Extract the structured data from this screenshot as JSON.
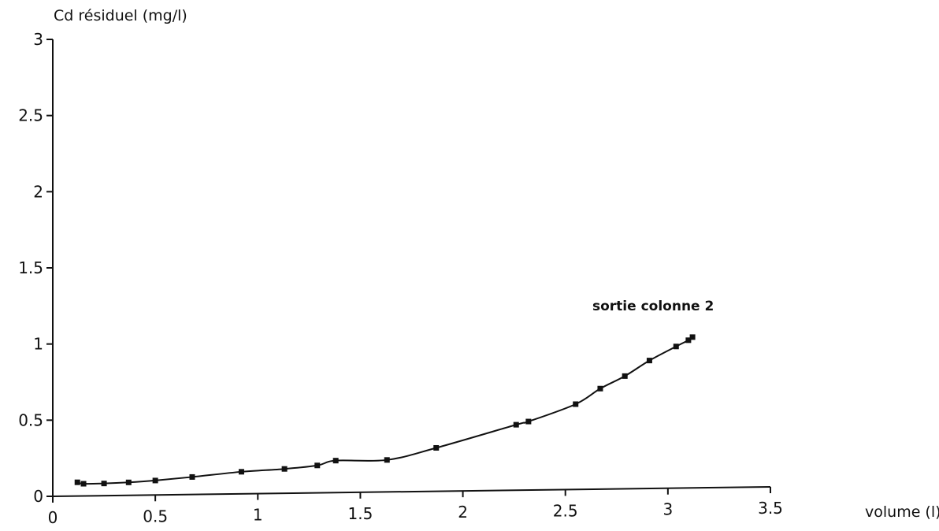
{
  "chart_data": {
    "type": "line",
    "title": "",
    "ylabel": "Cd résiduel (mg/l)",
    "xlabel": "volume (l)",
    "xlim": [
      0,
      3.5
    ],
    "ylim": [
      0,
      3
    ],
    "x_ticks": [
      "0",
      "0.5",
      "1",
      "1.5",
      "2",
      "2.5",
      "3",
      "3.5"
    ],
    "y_ticks": [
      "0",
      "0.5",
      "1",
      "1.5",
      "2",
      "2.5",
      "3"
    ],
    "grid": false,
    "marker": "square",
    "colors": {
      "line": "#111111",
      "axis": "#111111"
    },
    "annotation": "sortie colonne 2",
    "series": [
      {
        "x": [
          0.12,
          0.15,
          0.25,
          0.37,
          0.5,
          0.68,
          0.92,
          1.13,
          1.29,
          1.38,
          1.63,
          1.87,
          2.26,
          2.32,
          2.55,
          2.67,
          2.79,
          2.91,
          3.04,
          3.1,
          3.12
        ],
        "y": [
          0.09,
          0.08,
          0.08,
          0.085,
          0.095,
          0.115,
          0.145,
          0.16,
          0.18,
          0.21,
          0.21,
          0.285,
          0.43,
          0.45,
          0.56,
          0.66,
          0.74,
          0.84,
          0.93,
          0.97,
          0.99
        ]
      }
    ]
  }
}
